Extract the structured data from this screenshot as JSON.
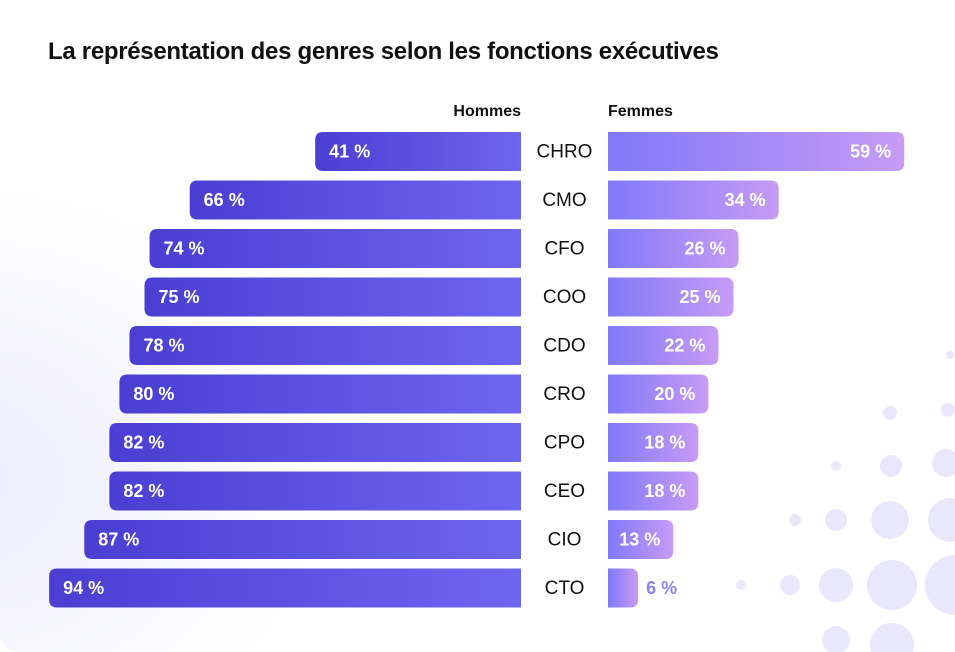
{
  "title": "La représentation des genres selon les fonctions exécutives",
  "colors": {
    "men_start": "#4b3ed2",
    "men_end": "#6d66f0",
    "women_start": "#8179f8",
    "women_end": "#c79bf5",
    "women_low_text": "#8a84ee",
    "label_text": "#ffffff",
    "category_text": "#111111",
    "dots": "#e8e6fb"
  },
  "chart_data": {
    "type": "bar",
    "title": "La représentation des genres selon les fonctions exécutives",
    "legend_position": "top",
    "grid": false,
    "unit": "%",
    "xlim": [
      0,
      100
    ],
    "categories": [
      "CHRO",
      "CMO",
      "CFO",
      "COO",
      "CDO",
      "CRO",
      "CPO",
      "CEO",
      "CIO",
      "CTO"
    ],
    "series": [
      {
        "name": "Hommes",
        "values": [
          41,
          66,
          74,
          75,
          78,
          80,
          82,
          82,
          87,
          94
        ],
        "labels": [
          "41 %",
          "66 %",
          "74 %",
          "75 %",
          "78 %",
          "80 %",
          "82 %",
          "82 %",
          "87 %",
          "94 %"
        ]
      },
      {
        "name": "Femmes",
        "values": [
          59,
          34,
          26,
          25,
          22,
          20,
          18,
          18,
          13,
          6
        ],
        "labels": [
          "59 %",
          "34 %",
          "26 %",
          "25 %",
          "22 %",
          "20 %",
          "18 %",
          "18 %",
          "13 %",
          "6 %"
        ]
      }
    ]
  }
}
